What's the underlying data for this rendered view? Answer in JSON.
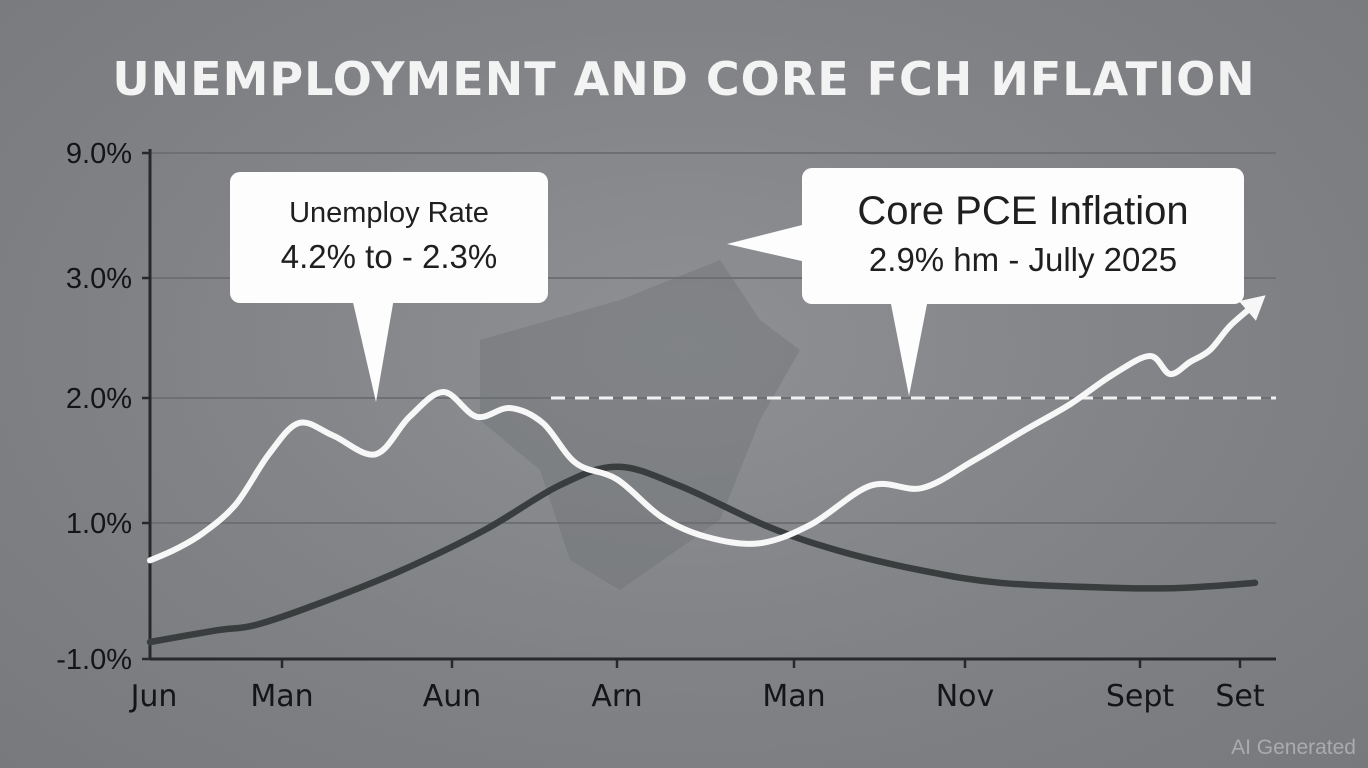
{
  "chart_data": {
    "type": "line",
    "title": "UNEMPLOYMENT AND CORE FCH ИFLATION",
    "x": [
      "Jun",
      "Man",
      "Aun",
      "Arn",
      "Man",
      "Nov",
      "Sept",
      "Set"
    ],
    "y_ticks": [
      "9.0%",
      "3.0%",
      "2.0%",
      "1.0%",
      "-1.0%"
    ],
    "y_tick_values": [
      9.0,
      3.0,
      2.0,
      1.0,
      -1.0
    ],
    "ylim": [
      -1.0,
      9.0
    ],
    "grid": true,
    "series": [
      {
        "color": "#f7f7f7",
        "points": [
          [
            0.0,
            0.45
          ],
          [
            0.2,
            0.62
          ],
          [
            0.4,
            0.85
          ],
          [
            0.65,
            1.15
          ],
          [
            0.9,
            1.55
          ],
          [
            1.1,
            1.8
          ],
          [
            1.3,
            1.7
          ],
          [
            1.55,
            1.55
          ],
          [
            1.75,
            1.85
          ],
          [
            1.95,
            2.05
          ],
          [
            2.15,
            1.85
          ],
          [
            2.35,
            1.92
          ],
          [
            2.55,
            1.8
          ],
          [
            2.75,
            1.48
          ],
          [
            3.0,
            1.35
          ],
          [
            3.25,
            1.05
          ],
          [
            3.5,
            0.8
          ],
          [
            3.8,
            0.7
          ],
          [
            4.1,
            0.98
          ],
          [
            4.45,
            1.3
          ],
          [
            4.75,
            1.28
          ],
          [
            5.05,
            1.5
          ],
          [
            5.35,
            1.75
          ],
          [
            5.6,
            1.95
          ],
          [
            5.85,
            2.2
          ],
          [
            6.1,
            2.35
          ],
          [
            6.3,
            2.2
          ],
          [
            6.5,
            2.3
          ],
          [
            6.7,
            2.4
          ],
          [
            6.9,
            2.6
          ],
          [
            7.15,
            2.78
          ]
        ]
      },
      {
        "color": "#3a3d3e",
        "points": [
          [
            0.0,
            -0.75
          ],
          [
            0.5,
            -0.58
          ],
          [
            0.8,
            -0.5
          ],
          [
            1.2,
            -0.2
          ],
          [
            1.7,
            0.3
          ],
          [
            2.2,
            0.9
          ],
          [
            2.65,
            1.3
          ],
          [
            3.0,
            1.45
          ],
          [
            3.35,
            1.3
          ],
          [
            3.85,
            0.95
          ],
          [
            4.25,
            0.6
          ],
          [
            4.75,
            0.3
          ],
          [
            5.2,
            0.12
          ],
          [
            5.8,
            0.05
          ],
          [
            6.3,
            0.04
          ],
          [
            6.8,
            0.08
          ],
          [
            7.15,
            0.12
          ]
        ]
      }
    ],
    "reference_line": {
      "y": 2.0,
      "x_from": 2.6,
      "style": "dashed"
    },
    "callouts": [
      {
        "lines": [
          "Unemploy Rate",
          "4.2% to - 2.3%"
        ]
      },
      {
        "lines": [
          "Core PCE Inflation",
          "2.9% hm - Jully 2025"
        ]
      }
    ]
  },
  "watermark": "AI Generated",
  "colors": {
    "background": "#808286",
    "grid": "#6d6f72",
    "axis": "#262829",
    "callout_bg": "#fdfdfd"
  }
}
